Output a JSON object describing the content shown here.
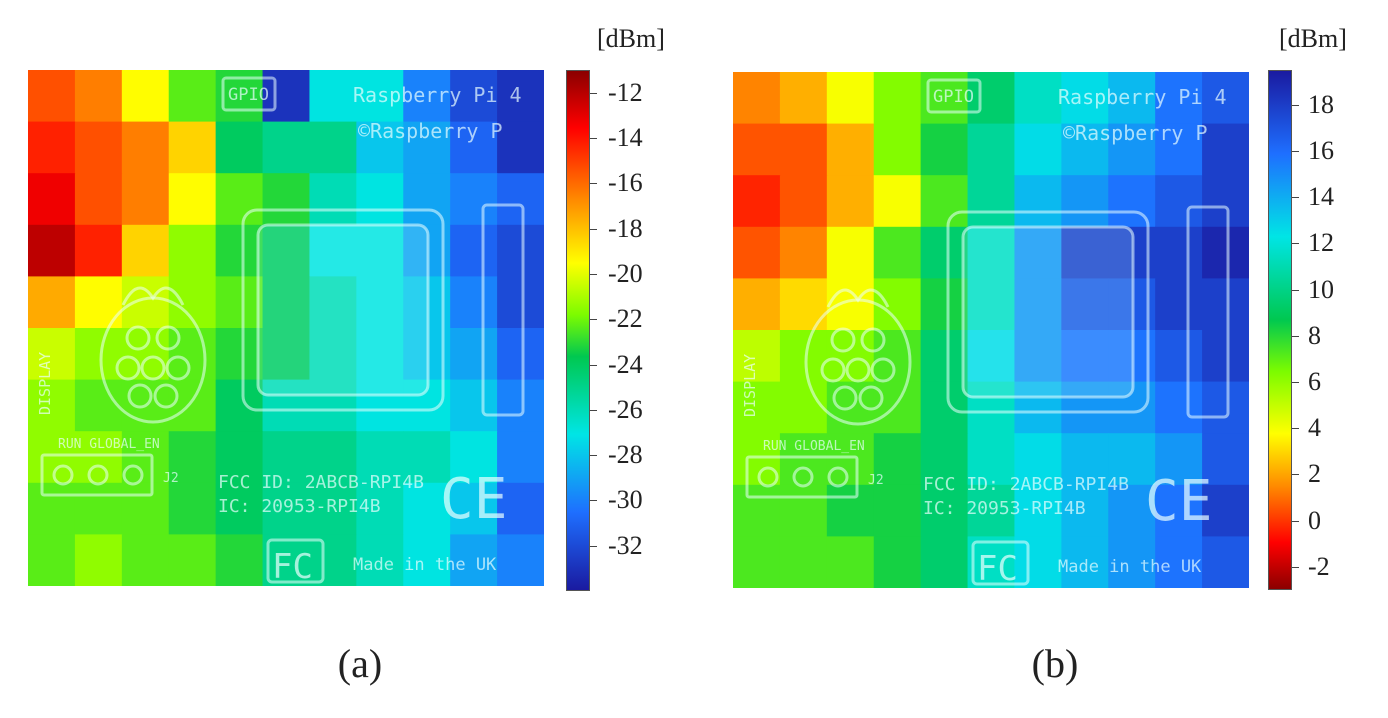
{
  "chart_data": [
    {
      "type": "heatmap",
      "caption": "(a)",
      "colorbar": {
        "unit": "[dBm]",
        "min": -34,
        "max": -11,
        "ticks": [
          "-12",
          "-14",
          "-16",
          "-18",
          "-20",
          "-22",
          "-24",
          "-26",
          "-28",
          "-30",
          "-32"
        ],
        "tick_values": [
          -12,
          -14,
          -16,
          -18,
          -20,
          -22,
          -24,
          -26,
          -28,
          -30,
          -32
        ],
        "colormap": "jet",
        "reversed": false
      },
      "grid_rows": 10,
      "grid_cols": 11,
      "values": [
        [
          -15,
          -16,
          -19,
          -22,
          -23,
          -33,
          -27,
          -27,
          -30,
          -32,
          -33
        ],
        [
          -14,
          -15,
          -16,
          -18,
          -24,
          -25,
          -25,
          -28,
          -29,
          -31,
          -33
        ],
        [
          -13,
          -15,
          -16,
          -19,
          -22,
          -23,
          -26,
          -27,
          -29,
          -30,
          -31
        ],
        [
          -12,
          -14,
          -18,
          -21,
          -23,
          -24,
          -27,
          -27,
          -29,
          -31,
          -32
        ],
        [
          -17,
          -19,
          -20,
          -21,
          -22,
          -24,
          -26,
          -27,
          -28,
          -30,
          -32
        ],
        [
          -20,
          -21,
          -21,
          -22,
          -23,
          -24,
          -26,
          -27,
          -28,
          -29,
          -31
        ],
        [
          -21,
          -22,
          -22,
          -22,
          -24,
          -26,
          -26,
          -27,
          -27,
          -28,
          -30
        ],
        [
          -21,
          -21,
          -22,
          -23,
          -24,
          -25,
          -25,
          -26,
          -26,
          -27,
          -30
        ],
        [
          -22,
          -22,
          -22,
          -23,
          -24,
          -25,
          -25,
          -26,
          -27,
          -28,
          -31
        ],
        [
          -22,
          -21,
          -22,
          -22,
          -23,
          -25,
          -25,
          -26,
          -27,
          -29,
          -30
        ]
      ]
    },
    {
      "type": "heatmap",
      "caption": "(b)",
      "colorbar": {
        "unit": "[dBm]",
        "min": -3,
        "max": 19.5,
        "ticks": [
          "18",
          "16",
          "14",
          "12",
          "10",
          "8",
          "6",
          "4",
          "2",
          "0",
          "-2"
        ],
        "tick_values": [
          18,
          16,
          14,
          12,
          10,
          8,
          6,
          4,
          2,
          0,
          -2
        ],
        "colormap": "jet",
        "reversed": true
      },
      "grid_rows": 10,
      "grid_cols": 11,
      "values": [
        [
          2,
          3,
          5,
          7,
          8,
          10,
          12,
          13,
          14,
          16,
          17
        ],
        [
          1,
          1,
          3,
          7,
          9,
          11,
          13,
          14,
          15,
          16,
          18
        ],
        [
          0,
          1,
          3,
          5,
          8,
          11,
          14,
          15,
          16,
          17,
          18
        ],
        [
          1,
          2,
          5,
          8,
          10,
          12,
          15,
          18,
          18,
          18,
          19
        ],
        [
          3,
          4,
          5,
          7,
          9,
          12,
          15,
          17,
          17,
          18,
          18
        ],
        [
          6,
          7,
          7,
          8,
          10,
          13,
          15,
          16,
          16,
          17,
          18
        ],
        [
          7,
          7,
          8,
          8,
          10,
          12,
          14,
          15,
          15,
          16,
          17
        ],
        [
          7,
          8,
          8,
          9,
          10,
          12,
          13,
          14,
          14,
          15,
          17
        ],
        [
          8,
          8,
          9,
          9,
          10,
          11,
          13,
          14,
          15,
          16,
          18
        ],
        [
          8,
          8,
          8,
          9,
          10,
          12,
          13,
          14,
          15,
          16,
          17
        ]
      ]
    }
  ],
  "board": {
    "labels": {
      "gpio": "GPIO",
      "model": "Raspberry Pi 4",
      "copyright": "©Raspberry P",
      "display": "DISPLAY",
      "run_global": "RUN GLOBAL_EN",
      "j2": "J2",
      "fcc_id": "FCC ID: 2ABCB-RPI4B",
      "ic": "IC: 20953-RPI4B",
      "ce": "CE",
      "fcc": "FC",
      "made": "Made in the UK"
    }
  }
}
